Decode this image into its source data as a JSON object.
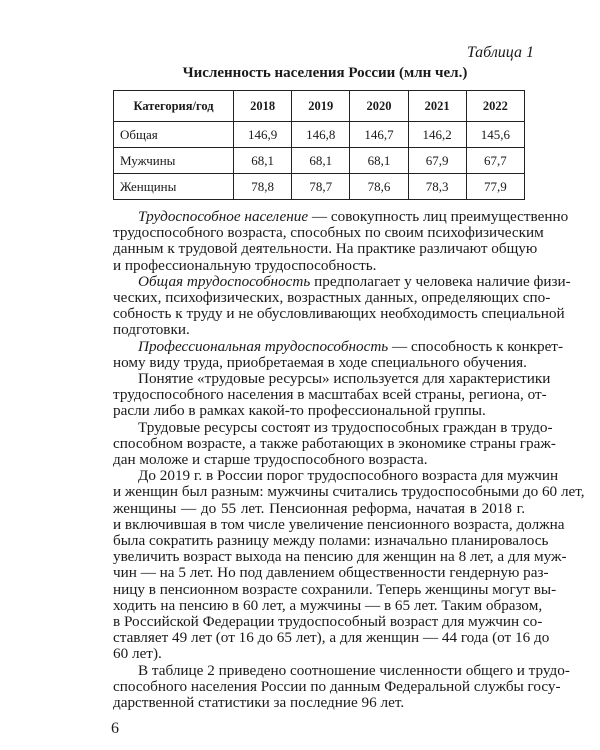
{
  "table_label": "Таблица 1",
  "table_title": "Численность населения России (млн чел.)",
  "table": {
    "headers": [
      "Категория/год",
      "2018",
      "2019",
      "2020",
      "2021",
      "2022"
    ],
    "rows": [
      [
        "Общая",
        "146,9",
        "146,8",
        "146,7",
        "146,2",
        "145,6"
      ],
      [
        "Мужчины",
        "68,1",
        "68,1",
        "68,1",
        "67,9",
        "67,7"
      ],
      [
        "Женщины",
        "78,8",
        "78,7",
        "78,6",
        "78,3",
        "77,9"
      ]
    ]
  },
  "paragraphs": [
    {
      "term": "Трудоспособное население",
      "lines": [
        " — совокупность лиц преимущественно",
        "трудоспособного возраста, способных по своим психофизическим",
        "данным к трудовой деятельности. На практике различают общую",
        "и профессиональную трудоспособность."
      ]
    },
    {
      "term": "Общая трудоспособность",
      "lines": [
        " предполагает у человека наличие физи-",
        "ческих, психофизических, возрастных данных, определяющих спо-",
        "собность к труду и не обусловливающих необходимость специальной",
        "подготовки."
      ]
    },
    {
      "term": "Профессиональная трудоспособность",
      "lines": [
        " — способность к конкрет-",
        "ному виду труда, приобретаемая в ходе специального обучения."
      ]
    },
    {
      "term": "",
      "lines": [
        "Понятие «трудовые ресурсы» используется для характеристики",
        "трудоспособного населения в масштабах всей страны, региона, от-",
        "расли либо в рамках какой-то профессиональной группы."
      ]
    },
    {
      "term": "",
      "lines": [
        "Трудовые ресурсы состоят из трудоспособных граждан в трудо-",
        "способном возрасте, а также работающих в экономике страны граж-",
        "дан моложе и старше трудоспособного возраста."
      ]
    },
    {
      "term": "",
      "lines": [
        "До 2019 г. в России порог трудоспособного возраста для мужчин",
        "и женщин был разным: мужчины считались трудоспособными до 60 лет,",
        "женщины — до 55 лет. Пенсионная реформа, начатая в 2018 г.",
        "и включившая в том числе увеличение пенсионного возраста, должна",
        "была сократить разницу между полами: изначально планировалось",
        "увеличить возраст выхода на пенсию для женщин на 8 лет, а для муж-",
        "чин — на 5 лет. Но под давлением общественности гендерную раз-",
        "ницу в пенсионном возрасте сохранили. Теперь женщины могут вы-",
        "ходить на пенсию в 60 лет, а мужчины — в 65 лет. Таким образом,",
        "в Российской Федерации трудоспособный возраст для мужчин со-",
        "ставляет 49 лет (от 16 до 65 лет), а для женщин — 44 года (от 16 до",
        "60 лет)."
      ]
    },
    {
      "term": "",
      "lines": [
        "В таблице 2 приведено соотношение численности общего и трудо-",
        "способного населения России по данным Федеральной службы госу-",
        "дарственной статистики за последние 96 лет."
      ]
    }
  ],
  "page_number": "6"
}
